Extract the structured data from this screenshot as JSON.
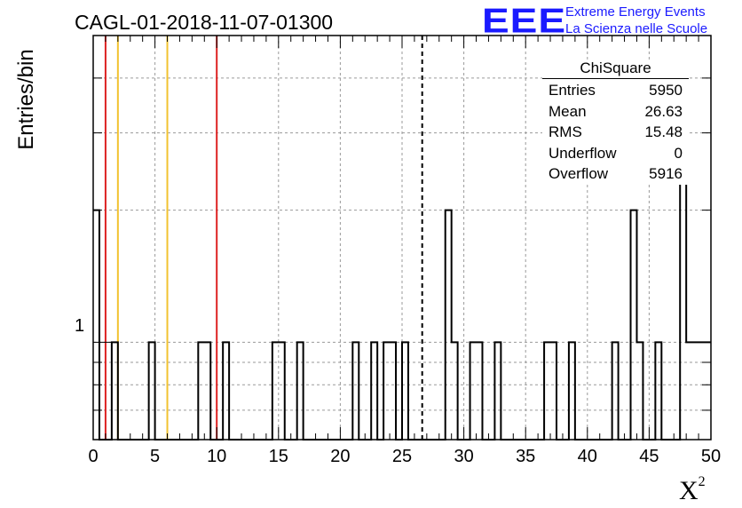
{
  "chart_data": {
    "type": "histogram",
    "title": "CAGL-01-2018-11-07-01300",
    "xlabel": "X",
    "xlabel_sup": "2",
    "ylabel": "Entries/bin",
    "xlim": [
      0,
      50
    ],
    "y_scale": "log",
    "ylim": [
      0.6,
      5
    ],
    "grid": true,
    "x_ticks": [
      "0",
      "5",
      "10",
      "15",
      "20",
      "25",
      "30",
      "35",
      "40",
      "45",
      "50"
    ],
    "y_ticks": [
      "1"
    ],
    "bin_width": 0.5,
    "bins": [
      {
        "x": 0.0,
        "count": 2
      },
      {
        "x": 1.5,
        "count": 1
      },
      {
        "x": 4.5,
        "count": 1
      },
      {
        "x": 8.5,
        "count": 1
      },
      {
        "x": 9.0,
        "count": 1
      },
      {
        "x": 10.5,
        "count": 1
      },
      {
        "x": 14.5,
        "count": 1
      },
      {
        "x": 15.0,
        "count": 1
      },
      {
        "x": 16.5,
        "count": 1
      },
      {
        "x": 21.0,
        "count": 1
      },
      {
        "x": 22.5,
        "count": 1
      },
      {
        "x": 23.5,
        "count": 1
      },
      {
        "x": 24.0,
        "count": 1
      },
      {
        "x": 25.0,
        "count": 1
      },
      {
        "x": 28.5,
        "count": 2
      },
      {
        "x": 29.0,
        "count": 1
      },
      {
        "x": 30.5,
        "count": 1
      },
      {
        "x": 31.0,
        "count": 1
      },
      {
        "x": 32.5,
        "count": 1
      },
      {
        "x": 36.5,
        "count": 1
      },
      {
        "x": 37.0,
        "count": 1
      },
      {
        "x": 38.5,
        "count": 1
      },
      {
        "x": 42.0,
        "count": 1
      },
      {
        "x": 43.5,
        "count": 2
      },
      {
        "x": 44.0,
        "count": 1
      },
      {
        "x": 45.5,
        "count": 1
      },
      {
        "x": 47.5,
        "count": 3
      },
      {
        "x": 48.0,
        "count": 1
      },
      {
        "x": 48.5,
        "count": 1
      },
      {
        "x": 49.0,
        "count": 1
      },
      {
        "x": 49.5,
        "count": 1
      }
    ],
    "vertical_lines": [
      {
        "x": 1.0,
        "color": "#dd2222",
        "style": "solid"
      },
      {
        "x": 2.0,
        "color": "#f2c230",
        "style": "solid"
      },
      {
        "x": 6.0,
        "color": "#f2c230",
        "style": "solid"
      },
      {
        "x": 10.0,
        "color": "#dd2222",
        "style": "solid"
      },
      {
        "x": 26.63,
        "color": "#000000",
        "style": "dashed"
      }
    ],
    "stats_box": {
      "name": "ChiSquare",
      "rows": [
        {
          "label": "Entries",
          "value": "5950"
        },
        {
          "label": "Mean",
          "value": "26.63"
        },
        {
          "label": "RMS",
          "value": "15.48"
        },
        {
          "label": "Underflow",
          "value": "0"
        },
        {
          "label": "Overflow",
          "value": "5916"
        }
      ]
    }
  },
  "logo": {
    "text": "EEE",
    "line1": "Extreme Energy Events",
    "line2": "La Scienza nelle Scuole",
    "color": "#1a1aff"
  }
}
